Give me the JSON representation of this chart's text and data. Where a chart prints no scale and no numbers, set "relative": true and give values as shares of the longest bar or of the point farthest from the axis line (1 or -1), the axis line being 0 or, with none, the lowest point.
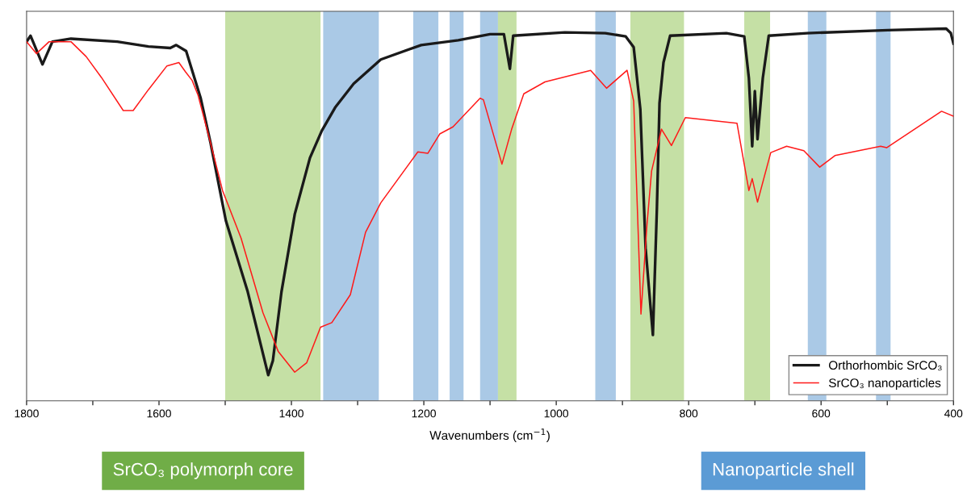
{
  "chart_data": {
    "type": "line",
    "relative": true,
    "xlabel": "Wavenumbers (cm$^{−1}$)",
    "xlim": [
      1800,
      400
    ],
    "xticks": [
      1800,
      {
        "value": 1700,
        "label": null
      },
      1600,
      {
        "value": 1500,
        "label": null
      },
      1400,
      {
        "value": 1300,
        "label": null
      },
      1200,
      {
        "value": 1100,
        "label": null
      },
      1000,
      {
        "value": 900,
        "label": null
      },
      800,
      {
        "value": 700,
        "label": null
      },
      600,
      {
        "value": 500,
        "label": null
      },
      400
    ],
    "series": [
      {
        "name": "Orthorhombic SrCO₃",
        "color": "#1a1a1a",
        "x": [
          1800,
          1794,
          1776,
          1761,
          1733,
          1663,
          1616,
          1583,
          1574,
          1559,
          1537,
          1522,
          1499,
          1466,
          1435,
          1428,
          1415,
          1395,
          1372,
          1354,
          1334,
          1306,
          1265,
          1204,
          1148,
          1100,
          1079,
          1070,
          1065,
          987,
          926,
          895,
          883,
          873,
          865,
          854,
          848,
          844,
          838,
          828,
          743,
          716,
          709,
          704,
          700,
          696,
          688,
          679,
          621,
          499,
          411,
          404,
          400
        ],
        "values": [
          0.965,
          0.981,
          0.904,
          0.965,
          0.973,
          0.965,
          0.952,
          0.948,
          0.956,
          0.94,
          0.813,
          0.692,
          0.484,
          0.293,
          0.069,
          0.108,
          0.293,
          0.501,
          0.653,
          0.726,
          0.788,
          0.852,
          0.917,
          0.956,
          0.969,
          0.985,
          0.985,
          0.892,
          0.981,
          0.99,
          0.988,
          0.979,
          0.95,
          0.784,
          0.41,
          0.177,
          0.514,
          0.8,
          0.909,
          0.981,
          0.988,
          0.979,
          0.867,
          0.684,
          0.832,
          0.703,
          0.867,
          0.981,
          0.988,
          0.996,
          1.0,
          0.988,
          0.96
        ]
      },
      {
        "name": "SrCO₃ nanoparticles",
        "color": "#ff1a1a",
        "x": [
          1800,
          1785,
          1766,
          1733,
          1710,
          1687,
          1654,
          1639,
          1616,
          1588,
          1570,
          1560,
          1550,
          1541,
          1522,
          1504,
          1476,
          1443,
          1420,
          1395,
          1377,
          1356,
          1339,
          1311,
          1288,
          1265,
          1209,
          1194,
          1176,
          1156,
          1115,
          1110,
          1082,
          1067,
          1049,
          1017,
          948,
          924,
          893,
          883,
          872,
          863,
          856,
          841,
          826,
          805,
          727,
          709,
          704,
          696,
          676,
          652,
          626,
          602,
          579,
          510,
          501,
          418,
          400
        ],
        "values": [
          0.965,
          0.933,
          0.965,
          0.965,
          0.925,
          0.869,
          0.78,
          0.78,
          0.836,
          0.9,
          0.909,
          0.884,
          0.861,
          0.821,
          0.692,
          0.565,
          0.437,
          0.237,
          0.133,
          0.077,
          0.102,
          0.198,
          0.21,
          0.285,
          0.453,
          0.532,
          0.669,
          0.665,
          0.717,
          0.736,
          0.813,
          0.809,
          0.636,
          0.732,
          0.825,
          0.857,
          0.888,
          0.84,
          0.888,
          0.805,
          0.233,
          0.472,
          0.617,
          0.73,
          0.686,
          0.761,
          0.746,
          0.565,
          0.597,
          0.534,
          0.667,
          0.684,
          0.672,
          0.628,
          0.659,
          0.684,
          0.68,
          0.778,
          0.765
        ]
      }
    ],
    "bands": [
      {
        "axis": "x",
        "from": 1500,
        "to": 1356,
        "color": "#c5e0a5"
      },
      {
        "axis": "x",
        "from": 1352,
        "to": 1268,
        "color": "#aac9e6"
      },
      {
        "axis": "x",
        "from": 1216,
        "to": 1178,
        "color": "#aac9e6"
      },
      {
        "axis": "x",
        "from": 1161,
        "to": 1140,
        "color": "#aac9e6"
      },
      {
        "axis": "x",
        "from": 1115,
        "to": 1088,
        "color": "#aac9e6"
      },
      {
        "axis": "x",
        "from": 1088,
        "to": 1060,
        "color": "#c5e0a5"
      },
      {
        "axis": "x",
        "from": 941,
        "to": 910,
        "color": "#aac9e6"
      },
      {
        "axis": "x",
        "from": 888,
        "to": 807,
        "color": "#c5e0a5"
      },
      {
        "axis": "x",
        "from": 716,
        "to": 677,
        "color": "#c5e0a5"
      },
      {
        "axis": "x",
        "from": 620,
        "to": 592,
        "color": "#aac9e6"
      },
      {
        "axis": "x",
        "from": 517,
        "to": 495,
        "color": "#aac9e6"
      }
    ],
    "annotations": [
      "SrCO₃ polymorph core",
      "Nanoparticle shell"
    ],
    "legend": "bottom right",
    "grid": false,
    "line_style": "solid",
    "marker": "none"
  }
}
